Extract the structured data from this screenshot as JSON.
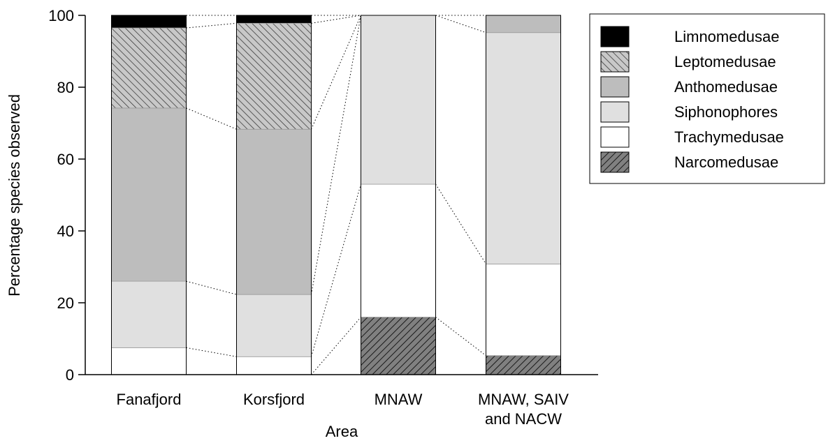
{
  "chart_data": {
    "type": "bar",
    "stacked": true,
    "categories": [
      "Fanafjord",
      "Korsfjord",
      "MNAW",
      "MNAW, SAIV and NACW"
    ],
    "category_lines": [
      [
        "Fanafjord"
      ],
      [
        "Korsfjord"
      ],
      [
        "MNAW"
      ],
      [
        "MNAW, SAIV",
        "and NACW"
      ]
    ],
    "xlabel": "Area",
    "ylabel": "Percentage species observed",
    "ylim": [
      0,
      100
    ],
    "yticks": [
      0,
      20,
      40,
      60,
      80,
      100
    ],
    "grid": false,
    "legend_position": "top-right",
    "connector_lines": "dotted lines join matching segment boundaries of adjacent bars",
    "series": [
      {
        "name": "Narcomedusae",
        "fill": "#808080",
        "pattern": "hatch",
        "values": [
          0,
          0,
          16,
          5.3
        ]
      },
      {
        "name": "Trachymedusae",
        "fill": "#ffffff",
        "pattern": "solid",
        "values": [
          7.5,
          5,
          37,
          25.5
        ]
      },
      {
        "name": "Siphonophores",
        "fill": "#e0e0e0",
        "pattern": "solid",
        "values": [
          18.5,
          17.3,
          47,
          64.4
        ]
      },
      {
        "name": "Anthomedusae",
        "fill": "#bdbdbd",
        "pattern": "solid",
        "values": [
          48.2,
          46,
          0,
          4.8
        ]
      },
      {
        "name": "Leptomedusae",
        "fill": "#c8c8c8",
        "pattern": "hatch",
        "values": [
          22.3,
          29.5,
          0,
          0
        ]
      },
      {
        "name": "Limnomedusae",
        "fill": "#000000",
        "pattern": "solid",
        "values": [
          3.5,
          2.2,
          0,
          0
        ]
      }
    ],
    "legend_order": [
      "Limnomedusae",
      "Leptomedusae",
      "Anthomedusae",
      "Siphonophores",
      "Trachymedusae",
      "Narcomedusae"
    ]
  }
}
